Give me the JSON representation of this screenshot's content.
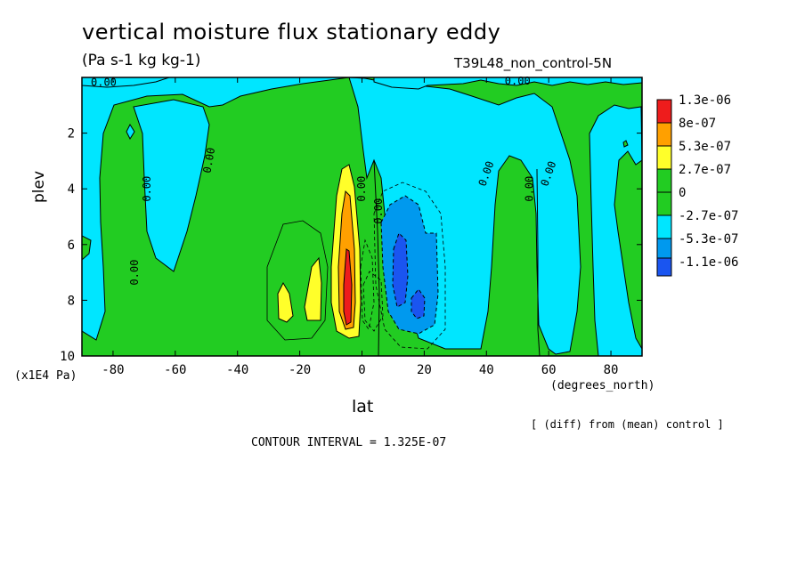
{
  "header": {
    "title": "vertical moisture flux stationary eddy",
    "units": "(Pa s-1 kg kg-1)",
    "run_label": "T39L48_non_control-5N"
  },
  "footer": {
    "y_units": "(x1E4 Pa)",
    "x_units": "(degrees_north)",
    "diff_note": "[ (diff) from (mean) control ]",
    "contour_interval": "CONTOUR INTERVAL = 1.325E-07"
  },
  "chart_data": {
    "type": "heatmap",
    "xlabel": "lat",
    "ylabel": "plev",
    "xlim": [
      -90,
      90
    ],
    "ylim": [
      0,
      10
    ],
    "y_reversed": true,
    "x_ticks": [
      -80,
      -60,
      -40,
      -20,
      0,
      20,
      40,
      60,
      80
    ],
    "y_ticks": [
      2,
      4,
      6,
      8,
      10
    ],
    "contour_labels": [
      "0.00",
      "0.00",
      "0.00",
      "0.00",
      "0.00",
      "0.00",
      "0.00",
      "0.00",
      "0.00",
      "0.00"
    ],
    "colorbar": {
      "placement": "right",
      "levels": [
        {
          "label": "1.3e-06",
          "color": "#ee1c1c"
        },
        {
          "label": "8e-07",
          "color": "#ffa000"
        },
        {
          "label": "5.3e-07",
          "color": "#ffff2a"
        },
        {
          "label": "2.7e-07",
          "color": "#22cc22"
        },
        {
          "label": "0",
          "color": "#22cc22"
        },
        {
          "label": "-2.7e-07",
          "color": "#00e6ff"
        },
        {
          "label": "-5.3e-07",
          "color": "#0099ee"
        },
        {
          "label": "-1.1e-06",
          "color": "#1a55f0"
        }
      ]
    },
    "colors": {
      "negative_weak": "#00e6ff",
      "negative_mid": "#0099ee",
      "negative_strong": "#1a55f0",
      "positive_weak": "#22cc22",
      "positive_mid": "#ffff2a",
      "positive_strong": "#ffa000",
      "positive_max": "#ee1c1c"
    }
  }
}
